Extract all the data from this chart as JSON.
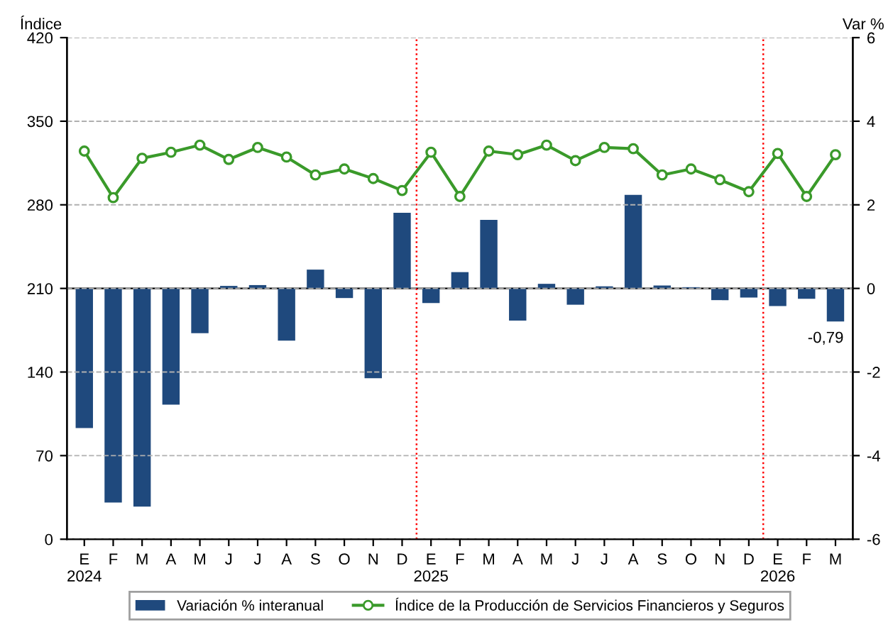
{
  "chart_data": {
    "type": "bar",
    "categories": [
      "E\n2024",
      "F",
      "M",
      "A",
      "M",
      "J",
      "J",
      "A",
      "S",
      "O",
      "N",
      "D",
      "E\n2025",
      "F",
      "M",
      "A",
      "M",
      "J",
      "J",
      "A",
      "S",
      "O",
      "N",
      "D",
      "E\n2026",
      "F",
      "M"
    ],
    "series": [
      {
        "name": "Variación % interanual",
        "axis": "y2",
        "color": "#1f497d",
        "values": [
          -3.34,
          -5.12,
          -5.22,
          -2.78,
          -1.07,
          0.06,
          0.08,
          -1.25,
          0.45,
          -0.23,
          -2.15,
          1.81,
          -0.35,
          0.39,
          1.64,
          -0.77,
          0.11,
          -0.39,
          0.05,
          2.24,
          0.07,
          0.03,
          -0.28,
          -0.22,
          -0.42,
          -0.25,
          -0.79
        ],
        "value_labels": [
          null,
          null,
          null,
          null,
          null,
          null,
          null,
          null,
          null,
          null,
          null,
          null,
          null,
          null,
          null,
          null,
          null,
          null,
          null,
          null,
          null,
          null,
          null,
          null,
          null,
          null,
          "-0,79"
        ]
      },
      {
        "name": "Índice de la Producción de Servicios Financieros y Seguros",
        "type": "line",
        "axis": "y",
        "color": "#3a9a2a",
        "marker": "circle",
        "values": [
          325,
          286,
          319,
          324,
          330,
          318,
          328,
          320,
          305,
          310,
          302,
          292,
          324,
          287,
          325,
          322,
          330,
          317,
          328,
          327,
          305,
          310,
          301,
          291,
          323,
          287,
          322
        ]
      }
    ],
    "ylabel": "Índice",
    "y2label": "Var %",
    "ylim": [
      0,
      420
    ],
    "yticks": [
      0,
      70,
      140,
      210,
      280,
      350,
      420
    ],
    "y2lim": [
      -6,
      6
    ],
    "y2ticks": [
      -6,
      -4,
      -2,
      0,
      2,
      4,
      6
    ],
    "grid": "y",
    "legend": "bottom"
  }
}
